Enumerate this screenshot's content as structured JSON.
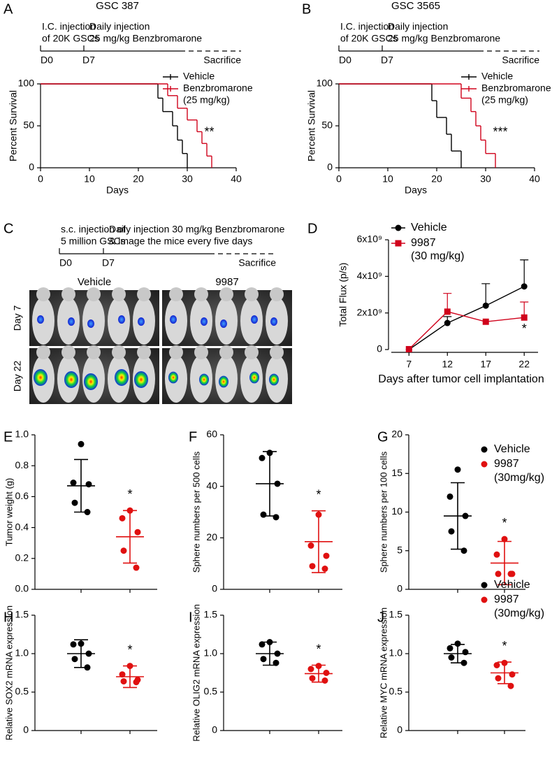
{
  "chart_data": [
    {
      "type": "survival",
      "panel": "A",
      "title": "GSC 387",
      "timeline": {
        "start_text": [
          "I.C. injection",
          "of 20K GSCs"
        ],
        "treatment_text": [
          "Daily injection",
          "25 mg/kg Benzbromarone"
        ],
        "start": "D0",
        "treatment_start": "D7",
        "end": "Sacrifice"
      },
      "xlabel": "Days",
      "ylabel": "Percent Survival",
      "xlim": [
        0,
        40
      ],
      "xticks": [
        0,
        10,
        20,
        30,
        40
      ],
      "ylim": [
        0,
        100
      ],
      "yticks": [
        0,
        50,
        100
      ],
      "series": [
        {
          "name": "Vehicle",
          "color": "#000000",
          "x": [
            0,
            24,
            25,
            27,
            28,
            29,
            30
          ],
          "values": [
            100,
            83,
            67,
            50,
            33,
            17,
            0
          ]
        },
        {
          "name": "Benzbromarone",
          "dose": "(25 mg/kg)",
          "color": "#d0021b",
          "x": [
            0,
            26,
            28,
            30,
            32,
            33,
            34,
            35
          ],
          "values": [
            100,
            86,
            71,
            57,
            43,
            29,
            14,
            0
          ]
        }
      ],
      "annotations": [
        {
          "text": "**",
          "x": 34.5,
          "y": 42,
          "color": "#d0021b"
        }
      ]
    },
    {
      "type": "survival",
      "panel": "B",
      "title": "GSC 3565",
      "timeline": {
        "start_text": [
          "I.C. injection",
          "of 20K GSCs"
        ],
        "treatment_text": [
          "Daily injection",
          "25 mg/kg Benzbromarone"
        ],
        "start": "D0",
        "treatment_start": "D7",
        "end": "Sacrifice"
      },
      "xlabel": "Days",
      "ylabel": "Percent Survival",
      "xlim": [
        0,
        40
      ],
      "xticks": [
        0,
        10,
        20,
        30,
        40
      ],
      "ylim": [
        0,
        100
      ],
      "yticks": [
        0,
        50,
        100
      ],
      "series": [
        {
          "name": "Vehicle",
          "color": "#000000",
          "x": [
            0,
            19,
            20,
            22,
            23,
            25
          ],
          "values": [
            100,
            80,
            60,
            40,
            20,
            0
          ]
        },
        {
          "name": "Benzbromarone",
          "dose": "(25 mg/kg)",
          "color": "#d0021b",
          "x": [
            0,
            25,
            27,
            28,
            29,
            30,
            32
          ],
          "values": [
            100,
            83,
            67,
            50,
            33,
            17,
            0
          ]
        }
      ],
      "annotations": [
        {
          "text": "***",
          "x": 33,
          "y": 42,
          "color": "#d0021b"
        }
      ]
    },
    {
      "type": "line",
      "panel": "D",
      "xlabel": "Days after tumor cell implantation",
      "ylabel": "Total Flux (p/s)",
      "x": [
        7,
        12,
        17,
        22
      ],
      "xlim": [
        4.7,
        23.8
      ],
      "xticks": [
        7,
        12,
        17,
        22
      ],
      "ylim": [
        0,
        6000000000
      ],
      "yticks": [
        0,
        {
          "value": 2000000000,
          "label": "2x10⁹"
        },
        {
          "value": 4000000000,
          "label": "4x10⁹"
        },
        {
          "value": 6000000000,
          "label": "6x10⁹"
        }
      ],
      "series": [
        {
          "name": "Vehicle",
          "color": "#000000",
          "marker": "circle",
          "values": [
            0,
            1450000000,
            2400000000,
            3450000000
          ],
          "errors": [
            0,
            350000000,
            1200000000,
            1450000000
          ]
        },
        {
          "name": "9987",
          "dose": "(30 mg/kg)",
          "color": "#d0021b",
          "marker": "square",
          "values": [
            20000000,
            2070000000,
            1520000000,
            1750000000
          ],
          "errors": [
            0,
            1000000000,
            0,
            850000000
          ]
        }
      ],
      "annotations": [
        {
          "text": "*",
          "x": 22,
          "y": 1100000000,
          "color": "#000000"
        }
      ]
    },
    {
      "type": "dot",
      "panel": "E",
      "ylabel": "Tumor weight (g)",
      "ylim": [
        0,
        1
      ],
      "yticks": [
        {
          "value": 0,
          "label": "0.0"
        },
        0.2,
        0.4,
        0.6,
        0.8,
        {
          "value": 1,
          "label": "1.0"
        }
      ],
      "significance": "*",
      "series": [
        {
          "color": "#000000",
          "values": [
            0.94,
            0.69,
            0.68,
            0.56,
            0.5
          ],
          "mean": 0.67,
          "sd": 0.17
        },
        {
          "color": "#e01010",
          "values": [
            0.51,
            0.46,
            0.37,
            0.25,
            0.14
          ],
          "mean": 0.34,
          "sd": 0.17
        }
      ]
    },
    {
      "type": "dot",
      "panel": "F",
      "ylabel": "Sphere numbers per 500 cells",
      "ylim": [
        0,
        60
      ],
      "yticks": [
        0,
        20,
        40,
        60
      ],
      "significance": "*",
      "series": [
        {
          "color": "#000000",
          "values": [
            53,
            51,
            41,
            29,
            28
          ],
          "mean": 41,
          "sd": 12.5
        },
        {
          "color": "#e01010",
          "values": [
            29,
            17,
            13,
            9,
            8
          ],
          "mean": 18.5,
          "sd": 12
        }
      ]
    },
    {
      "type": "dot",
      "panel": "G",
      "ylabel": "Sphere numbers per 100 cells",
      "ylim": [
        0,
        20
      ],
      "yticks": [
        0,
        5,
        10,
        15,
        20
      ],
      "significance": "*",
      "series": [
        {
          "name": "Vehicle",
          "color": "#000000",
          "values": [
            15.5,
            12,
            9.5,
            7.5,
            5
          ],
          "mean": 9.5,
          "sd": 4.3
        },
        {
          "name": "9987",
          "dose": "(30mg/kg)",
          "color": "#e01010",
          "values": [
            6.5,
            4.5,
            2,
            2,
            2
          ],
          "mean": 3.4,
          "sd": 2.8
        }
      ]
    },
    {
      "type": "dot",
      "panel": "H",
      "ylabel": "Relative SOX2 mRNA expression",
      "ylim": [
        0,
        1.5
      ],
      "yticks": [
        0,
        0.5,
        {
          "value": 1,
          "label": "1.0"
        },
        1.5
      ],
      "significance": "*",
      "series": [
        {
          "color": "#000000",
          "values": [
            1.13,
            1.12,
            1.0,
            0.93,
            0.82
          ],
          "mean": 1.0,
          "sd": 0.18
        },
        {
          "color": "#e01010",
          "values": [
            0.84,
            0.73,
            0.66,
            0.64,
            0.63
          ],
          "mean": 0.7,
          "sd": 0.14
        }
      ]
    },
    {
      "type": "dot",
      "panel": "I",
      "ylabel": "Relative OLIG2 mRNA expression",
      "ylim": [
        0,
        1.5
      ],
      "yticks": [
        0,
        0.5,
        {
          "value": 1,
          "label": "1.0"
        },
        1.5
      ],
      "significance": "*",
      "series": [
        {
          "color": "#000000",
          "values": [
            1.15,
            1.12,
            1.0,
            0.93,
            0.88
          ],
          "mean": 1.0,
          "sd": 0.15
        },
        {
          "color": "#e01010",
          "values": [
            0.84,
            0.8,
            0.75,
            0.68,
            0.65
          ],
          "mean": 0.74,
          "sd": 0.11
        }
      ]
    },
    {
      "type": "dot",
      "panel": "J",
      "ylabel": "Relative MYC mRNA expression",
      "ylim": [
        0,
        1.5
      ],
      "yticks": [
        0,
        0.5,
        {
          "value": 1,
          "label": "1.0"
        },
        1.5
      ],
      "significance": "*",
      "series": [
        {
          "name": "Vehicle",
          "color": "#000000",
          "values": [
            1.13,
            1.07,
            1.02,
            0.95,
            0.88
          ],
          "mean": 1.0,
          "sd": 0.12
        },
        {
          "name": "9987",
          "dose": "(30mg/kg)",
          "color": "#e01010",
          "values": [
            0.88,
            0.85,
            0.73,
            0.68,
            0.58
          ],
          "mean": 0.75,
          "sd": 0.14
        }
      ]
    }
  ],
  "panel_c": {
    "panel": "C",
    "timeline": {
      "start_text": [
        "s.c. injection of",
        "5 million GSCs"
      ],
      "treatment_text": [
        "Daily injection 30 mg/kg Benzbromarone",
        "& image the mice every five days"
      ],
      "start": "D0",
      "treatment_start": "D7",
      "end": "Sacrifice"
    },
    "columns": [
      "Vehicle",
      "9987"
    ],
    "rows": [
      "Day 7",
      "Day 22"
    ]
  }
}
